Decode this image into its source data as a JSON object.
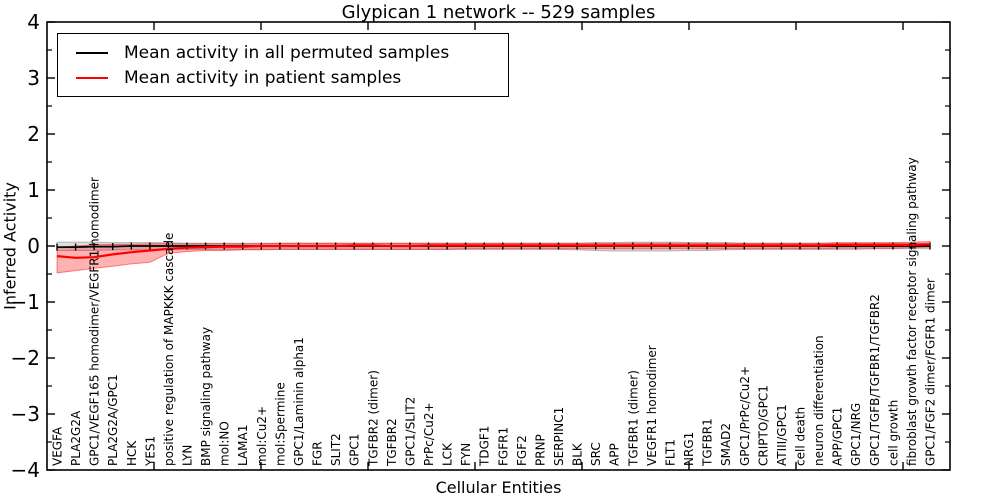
{
  "chart_data": {
    "type": "line",
    "title": "Glypican 1 network -- 529 samples",
    "xlabel": "Cellular Entities",
    "ylabel": "Inferred Activity",
    "ylim": [
      -4,
      4
    ],
    "yticks": [
      4,
      3,
      2,
      1,
      0,
      -1,
      -2,
      -3,
      -4
    ],
    "grid": false,
    "legend_position": "upper left",
    "categories": [
      "VEGFA",
      "PLA2G2A",
      "GPC1/VEGF165 homodimer/VEGFR1 homodimer",
      "PLA2G2A/GPC1",
      "HCK",
      "YES1",
      "positive regulation of MAPKKK cascade",
      "LYN",
      "BMP signaling pathway",
      "mol:NO",
      "LAMA1",
      "mol:Cu2+",
      "mol:Spermine",
      "GPC1/Laminin alpha1",
      "FGR",
      "SLIT2",
      "GPC1",
      "TGFBR2 (dimer)",
      "TGFBR2",
      "GPC1/SLIT2",
      "PrPc/Cu2+",
      "LCK",
      "FYN",
      "TDGF1",
      "FGFR1",
      "FGF2",
      "PRNP",
      "SERPINC1",
      "BLK",
      "SRC",
      "APP",
      "TGFBR1 (dimer)",
      "VEGFR1 homodimer",
      "FLT1",
      "NRG1",
      "TGFBR1",
      "SMAD2",
      "GPC1/PrPc/Cu2+",
      "CRIPTO/GPC1",
      "ATIII/GPC1",
      "cell death",
      "neuron differentiation",
      "APP/GPC1",
      "GPC1/NRG",
      "GPC1/TGFB/TGFBR1/TGFBR2",
      "cell growth",
      "fibroblast growth factor receptor signaling pathway",
      "GPC1/FGF2 dimer/FGFR1 dimer"
    ],
    "series": [
      {
        "name": "Mean activity in all permuted samples",
        "color": "#000000",
        "band_color": "rgba(0,0,0,0.13)",
        "band_edge": "rgba(0,0,0,0.25)",
        "values": [
          -0.02,
          -0.02,
          -0.01,
          -0.01,
          0,
          0,
          0,
          0,
          0,
          0,
          0,
          0,
          0,
          0,
          0,
          0,
          0,
          0,
          0,
          0,
          0,
          0,
          0,
          0,
          0,
          0,
          0,
          0,
          0,
          0,
          0,
          0,
          0,
          0,
          0,
          0,
          0,
          0,
          0,
          0,
          0,
          0,
          0,
          0,
          0,
          0,
          0,
          0
        ],
        "band_upper": [
          0.07,
          0.07,
          0.07,
          0.06,
          0.06,
          0.06,
          0.06,
          0.05,
          0.05,
          0.05,
          0.05,
          0.05,
          0.05,
          0.05,
          0.05,
          0.05,
          0.05,
          0.05,
          0.05,
          0.05,
          0.05,
          0.05,
          0.05,
          0.05,
          0.05,
          0.05,
          0.05,
          0.05,
          0.05,
          0.06,
          0.06,
          0.07,
          0.07,
          0.07,
          0.06,
          0.06,
          0.06,
          0.05,
          0.05,
          0.05,
          0.05,
          0.05,
          0.05,
          0.05,
          0.05,
          0.05,
          0.05,
          0.05
        ],
        "band_lower": [
          -0.08,
          -0.08,
          -0.08,
          -0.07,
          -0.07,
          -0.07,
          -0.07,
          -0.06,
          -0.06,
          -0.06,
          -0.06,
          -0.06,
          -0.06,
          -0.06,
          -0.06,
          -0.06,
          -0.06,
          -0.06,
          -0.06,
          -0.06,
          -0.06,
          -0.06,
          -0.06,
          -0.06,
          -0.06,
          -0.06,
          -0.06,
          -0.06,
          -0.07,
          -0.08,
          -0.09,
          -0.09,
          -0.09,
          -0.09,
          -0.08,
          -0.08,
          -0.07,
          -0.06,
          -0.06,
          -0.06,
          -0.06,
          -0.06,
          -0.06,
          -0.06,
          -0.05,
          -0.05,
          -0.05,
          -0.05
        ]
      },
      {
        "name": "Mean activity in patient samples",
        "color": "#ff0000",
        "band_color": "rgba(255,0,0,0.30)",
        "band_edge": "rgba(255,0,0,0.45)",
        "values": [
          -0.18,
          -0.21,
          -0.2,
          -0.15,
          -0.11,
          -0.08,
          -0.05,
          -0.03,
          -0.02,
          -0.01,
          -0.01,
          0,
          0,
          0,
          0,
          0,
          0.01,
          0.01,
          0,
          0,
          0.01,
          0.01,
          0.01,
          0.01,
          0.01,
          0.01,
          0.01,
          0.01,
          0.01,
          0.01,
          0.01,
          0.01,
          0.01,
          0.01,
          0.01,
          0.01,
          0.01,
          0.01,
          0.01,
          0.01,
          0.01,
          0.01,
          0.02,
          0.02,
          0.02,
          0.02,
          0.02,
          0.03
        ],
        "band_upper": [
          -0.03,
          0.0,
          0.02,
          0.03,
          0.03,
          0.04,
          0.04,
          0.04,
          0.04,
          0.04,
          0.04,
          0.04,
          0.05,
          0.05,
          0.05,
          0.05,
          0.05,
          0.05,
          0.05,
          0.05,
          0.05,
          0.05,
          0.05,
          0.05,
          0.05,
          0.05,
          0.05,
          0.05,
          0.05,
          0.05,
          0.05,
          0.05,
          0.05,
          0.05,
          0.05,
          0.05,
          0.05,
          0.05,
          0.05,
          0.05,
          0.05,
          0.05,
          0.06,
          0.06,
          0.06,
          0.06,
          0.07,
          0.08
        ],
        "band_lower": [
          -0.48,
          -0.44,
          -0.4,
          -0.36,
          -0.32,
          -0.29,
          -0.13,
          -0.1,
          -0.08,
          -0.08,
          -0.07,
          -0.07,
          -0.06,
          -0.06,
          -0.06,
          -0.06,
          -0.06,
          -0.06,
          -0.06,
          -0.06,
          -0.06,
          -0.06,
          -0.05,
          -0.05,
          -0.05,
          -0.05,
          -0.05,
          -0.05,
          -0.05,
          -0.05,
          -0.05,
          -0.05,
          -0.05,
          -0.05,
          -0.05,
          -0.05,
          -0.05,
          -0.05,
          -0.05,
          -0.05,
          -0.05,
          -0.05,
          -0.04,
          -0.04,
          -0.04,
          -0.04,
          -0.03,
          -0.02
        ]
      }
    ]
  }
}
